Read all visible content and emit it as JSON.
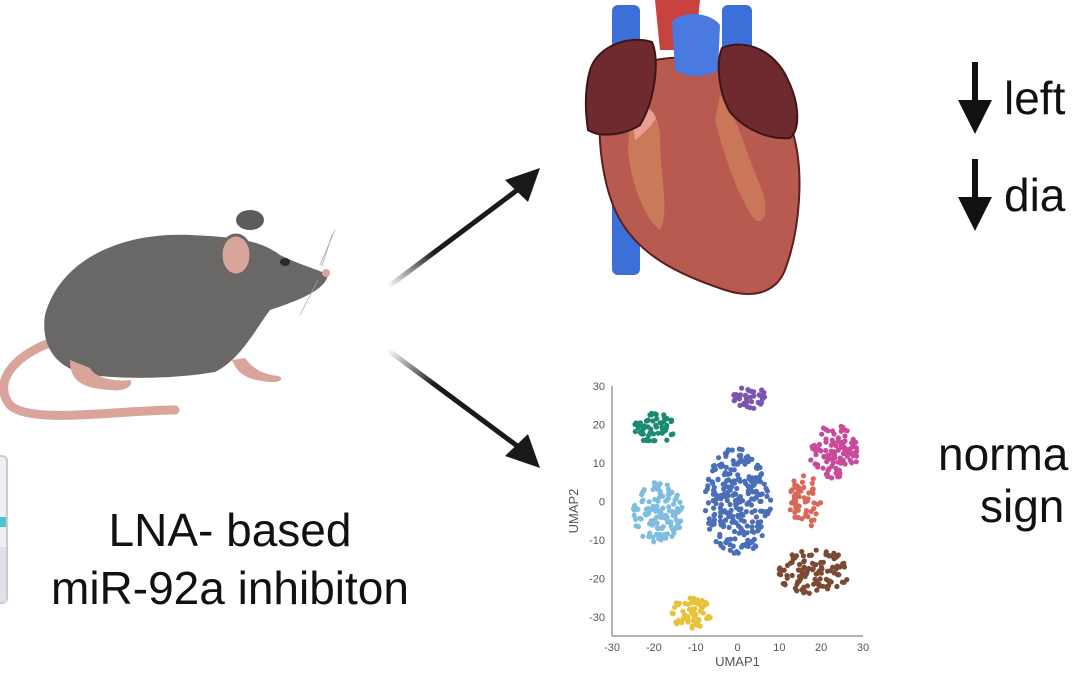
{
  "treatment": {
    "caption_line1": "LNA- based",
    "caption_line2": "miR-92a inhibiton",
    "subject": "mouse",
    "vial": "drug-vial"
  },
  "arrows": {
    "upper_target": "heart",
    "lower_target": "umap-plot"
  },
  "outcomes": {
    "cardiac": [
      {
        "symbol": "↓",
        "text": "left"
      },
      {
        "symbol": "↓",
        "text": "dia"
      }
    ],
    "transcriptomic": {
      "line1": "norma",
      "line2": "sign"
    }
  },
  "colors": {
    "mouse_body": "#6a6867",
    "mouse_skin": "#d9a59a",
    "heart_muscle": "#b85a50",
    "heart_atria": "#6e2a2e",
    "vessel_blue": "#3d6fd8",
    "arrow": "#1a1a1a"
  },
  "chart_data": {
    "type": "scatter",
    "title": "",
    "xlabel": "UMAP1",
    "ylabel": "UMAP2",
    "xlim": [
      -30,
      30
    ],
    "ylim": [
      -35,
      30
    ],
    "xticks": [
      -30,
      -20,
      -10,
      0,
      10,
      20,
      30
    ],
    "yticks": [
      30,
      20,
      10,
      0,
      -10,
      -20,
      -30
    ],
    "grid": false,
    "legend": "none",
    "series": [
      {
        "name": "cluster-teal",
        "color": "#1a8a73",
        "center": [
          -20,
          19
        ],
        "spread": [
          5,
          4
        ],
        "n": 60
      },
      {
        "name": "cluster-purple",
        "color": "#7b55b0",
        "center": [
          3,
          27
        ],
        "spread": [
          4,
          3
        ],
        "n": 40
      },
      {
        "name": "cluster-blue",
        "color": "#4a6fb8",
        "center": [
          0,
          0
        ],
        "spread": [
          8,
          14
        ],
        "n": 260
      },
      {
        "name": "cluster-lightblue",
        "color": "#7fbde0",
        "center": [
          -19,
          -3
        ],
        "spread": [
          6,
          8
        ],
        "n": 120
      },
      {
        "name": "cluster-magenta",
        "color": "#c94a9a",
        "center": [
          23,
          13
        ],
        "spread": [
          6,
          7
        ],
        "n": 110
      },
      {
        "name": "cluster-salmon",
        "color": "#d8685a",
        "center": [
          16,
          0
        ],
        "spread": [
          4,
          7
        ],
        "n": 60
      },
      {
        "name": "cluster-brown",
        "color": "#7a4a35",
        "center": [
          18,
          -18
        ],
        "spread": [
          9,
          6
        ],
        "n": 110
      },
      {
        "name": "cluster-yellow",
        "color": "#e8c23a",
        "center": [
          -11,
          -29
        ],
        "spread": [
          5,
          4
        ],
        "n": 60
      }
    ]
  }
}
